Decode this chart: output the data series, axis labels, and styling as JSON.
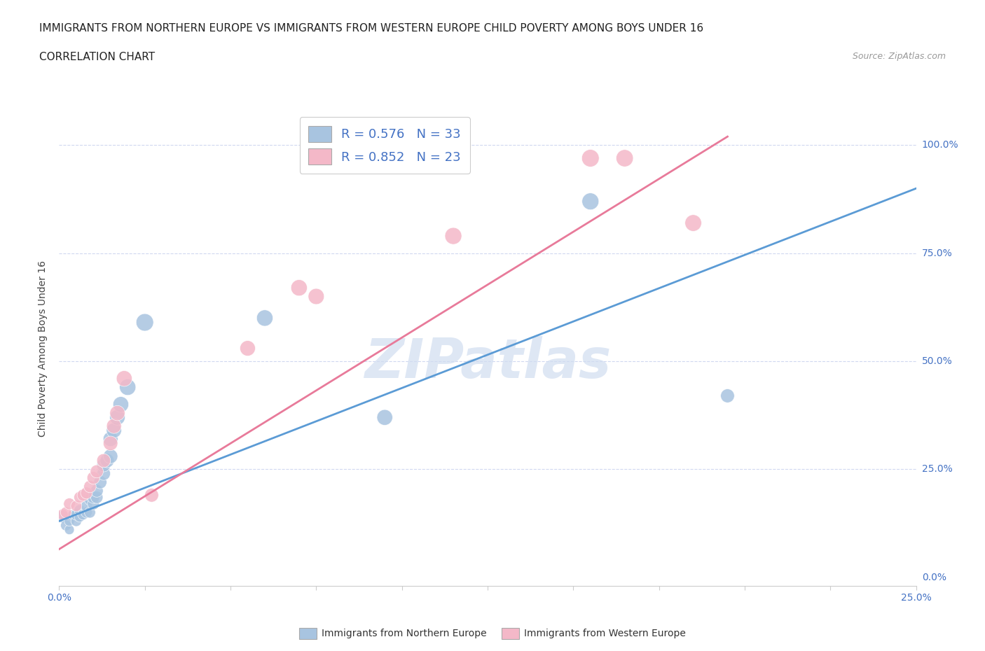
{
  "title": "IMMIGRANTS FROM NORTHERN EUROPE VS IMMIGRANTS FROM WESTERN EUROPE CHILD POVERTY AMONG BOYS UNDER 16",
  "subtitle": "CORRELATION CHART",
  "source": "Source: ZipAtlas.com",
  "ylabel": "Child Poverty Among Boys Under 16",
  "xlim": [
    0.0,
    0.25
  ],
  "ylim": [
    -0.02,
    1.08
  ],
  "blue_color": "#a8c4e0",
  "pink_color": "#f4b8c8",
  "blue_line_color": "#5b9bd5",
  "pink_line_color": "#e87a9a",
  "legend_blue_label": "R = 0.576   N = 33",
  "legend_pink_label": "R = 0.852   N = 23",
  "blue_scatter_x": [
    0.001,
    0.002,
    0.003,
    0.003,
    0.004,
    0.005,
    0.005,
    0.006,
    0.006,
    0.007,
    0.008,
    0.008,
    0.009,
    0.009,
    0.01,
    0.01,
    0.011,
    0.011,
    0.012,
    0.013,
    0.013,
    0.014,
    0.015,
    0.015,
    0.016,
    0.017,
    0.018,
    0.02,
    0.025,
    0.06,
    0.095,
    0.155,
    0.195
  ],
  "blue_scatter_y": [
    0.14,
    0.12,
    0.11,
    0.13,
    0.145,
    0.13,
    0.145,
    0.14,
    0.155,
    0.145,
    0.15,
    0.165,
    0.15,
    0.18,
    0.17,
    0.185,
    0.185,
    0.2,
    0.22,
    0.24,
    0.26,
    0.27,
    0.28,
    0.32,
    0.34,
    0.37,
    0.4,
    0.44,
    0.59,
    0.6,
    0.37,
    0.87,
    0.42
  ],
  "blue_scatter_sizes": [
    150,
    120,
    100,
    110,
    100,
    120,
    130,
    120,
    130,
    120,
    130,
    140,
    130,
    140,
    150,
    160,
    160,
    170,
    180,
    190,
    200,
    210,
    220,
    230,
    240,
    250,
    260,
    280,
    320,
    280,
    260,
    300,
    200
  ],
  "pink_scatter_x": [
    0.001,
    0.002,
    0.003,
    0.005,
    0.006,
    0.007,
    0.008,
    0.009,
    0.01,
    0.011,
    0.013,
    0.015,
    0.016,
    0.017,
    0.019,
    0.027,
    0.055,
    0.07,
    0.075,
    0.115,
    0.155,
    0.165,
    0.185
  ],
  "pink_scatter_y": [
    0.145,
    0.15,
    0.17,
    0.165,
    0.185,
    0.19,
    0.195,
    0.21,
    0.23,
    0.245,
    0.27,
    0.31,
    0.35,
    0.38,
    0.46,
    0.19,
    0.53,
    0.67,
    0.65,
    0.79,
    0.97,
    0.97,
    0.82
  ],
  "pink_scatter_sizes": [
    130,
    130,
    140,
    130,
    140,
    150,
    150,
    160,
    170,
    180,
    200,
    220,
    230,
    240,
    260,
    200,
    250,
    280,
    270,
    300,
    320,
    310,
    290
  ],
  "blue_line_x": [
    0.0,
    0.25
  ],
  "blue_line_y": [
    0.13,
    0.9
  ],
  "pink_line_x": [
    0.0,
    0.195
  ],
  "pink_line_y": [
    0.065,
    1.02
  ],
  "watermark": "ZIPatlas",
  "background_color": "#ffffff",
  "grid_color": "#d0d8f0",
  "title_fontsize": 11,
  "subtitle_fontsize": 11,
  "axis_label_fontsize": 10,
  "tick_fontsize": 10,
  "right_ytick_color": "#4472c4",
  "xtick_color": "#4472c4"
}
